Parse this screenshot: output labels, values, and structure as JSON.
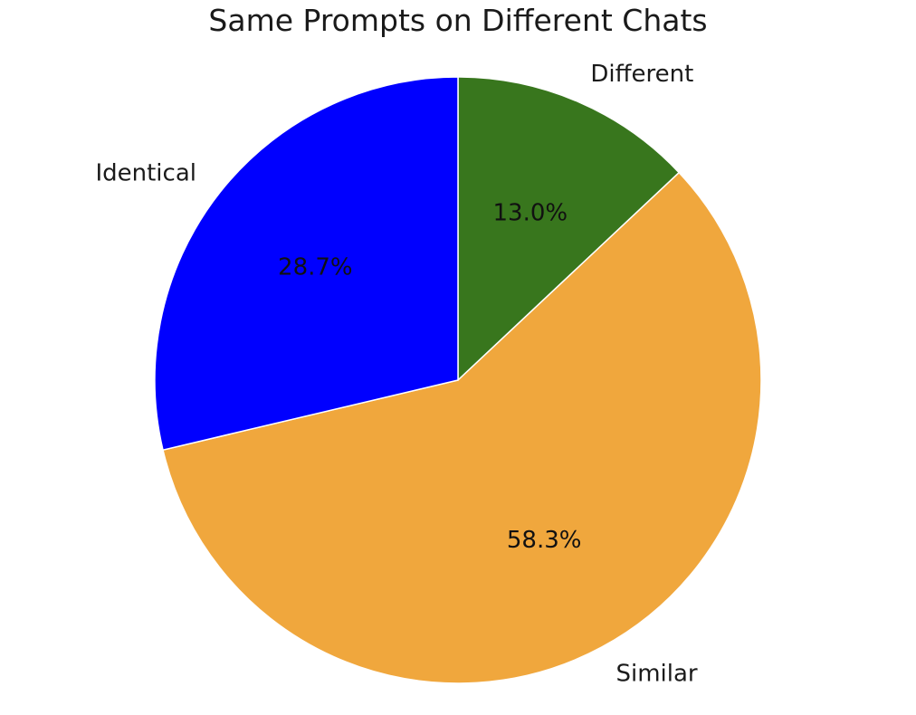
{
  "chart_data": {
    "type": "pie",
    "title": "Same Prompts on Different Chats",
    "slices": [
      {
        "label": "Different",
        "value": 13.0,
        "pct_label": "13.0%",
        "color": "#38761d"
      },
      {
        "label": "Similar",
        "value": 58.3,
        "pct_label": "58.3%",
        "color": "#f0a73d"
      },
      {
        "label": "Identical",
        "value": 28.7,
        "pct_label": "28.7%",
        "color": "#0000ff"
      }
    ],
    "start_angle_deg": 90,
    "direction": "clockwise",
    "legend": "none"
  }
}
